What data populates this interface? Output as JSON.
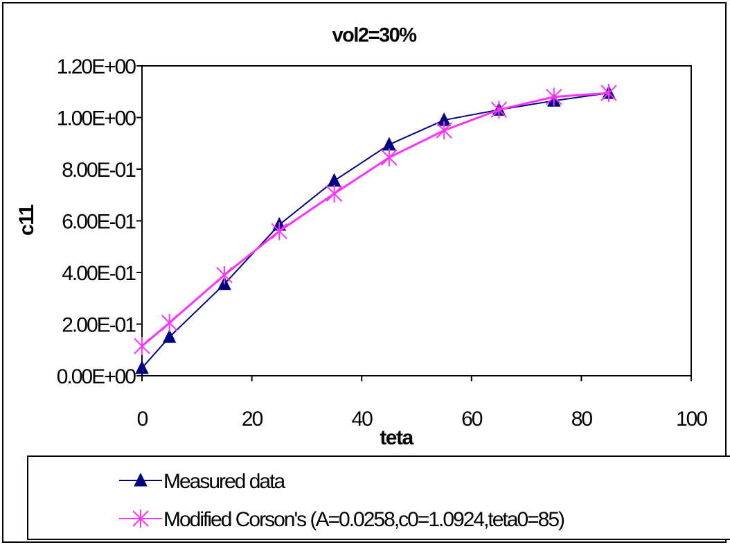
{
  "chart_data": {
    "type": "line",
    "title": "vol2=30%",
    "xlabel": "teta",
    "ylabel": "c11",
    "xlim": [
      0,
      100
    ],
    "ylim": [
      0,
      1.2
    ],
    "x_ticks": [
      "0",
      "20",
      "40",
      "60",
      "80",
      "100"
    ],
    "y_ticks": [
      "0.00E+00",
      "2.00E-01",
      "4.00E-01",
      "6.00E-01",
      "8.00E-01",
      "1.00E+00",
      "1.20E+00"
    ],
    "grid": false,
    "legend_position": "bottom",
    "series": [
      {
        "name": "Measured data",
        "color": "#000080",
        "marker": "triangle",
        "x": [
          0,
          5,
          15,
          25,
          35,
          45,
          55,
          65,
          75,
          85
        ],
        "y": [
          0.03,
          0.15,
          0.355,
          0.585,
          0.755,
          0.895,
          0.99,
          1.03,
          1.065,
          1.095
        ]
      },
      {
        "name": "Modified Corson's (A=0.0258,c0=1.0924,teta0=85)",
        "color": "#ff33ff",
        "marker": "star",
        "x": [
          0,
          5,
          15,
          25,
          35,
          45,
          55,
          65,
          75,
          85
        ],
        "y": [
          0.115,
          0.205,
          0.39,
          0.56,
          0.705,
          0.845,
          0.95,
          1.03,
          1.08,
          1.095
        ]
      }
    ]
  }
}
